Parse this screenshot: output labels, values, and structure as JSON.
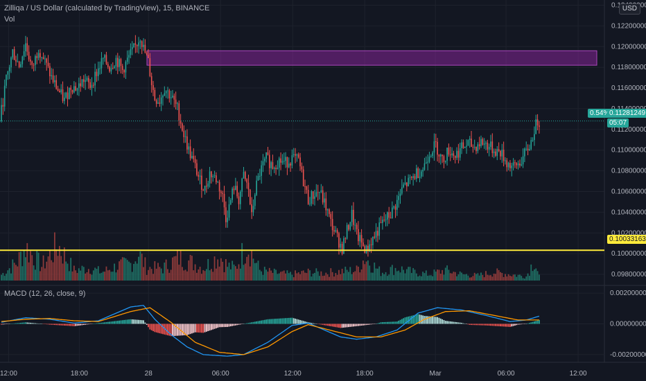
{
  "header": {
    "title": "Zilliqa / US Dollar (calculated by TradingView), 15, BINANCE",
    "vol_label": "Vol",
    "currency": "USD",
    "macd_label": "MACD (12, 26, close, 9)"
  },
  "price_axis": {
    "ticks": [
      "0.12400000",
      "0.12200000",
      "0.12000000",
      "0.11800000",
      "0.11600000",
      "0.11400000",
      "0.11200000",
      "0.11000000",
      "0.10800000",
      "0.10600000",
      "0.10400000",
      "0.10200000",
      "0.10000000",
      "0.09800000"
    ]
  },
  "macd_axis": {
    "ticks": [
      "0.00200000",
      "0.00000000",
      "-0.00200000"
    ]
  },
  "time_axis": {
    "labels": [
      "12:00",
      "18:00",
      "28",
      "06:00",
      "12:00",
      "18:00",
      "Mar",
      "06:00",
      "12:00"
    ]
  },
  "tags": {
    "current_change": "0.54%",
    "current_price": "0.11281249",
    "countdown": "05:07",
    "line_price": "0.10033163"
  },
  "colors": {
    "up": "#26a69a",
    "down": "#ef5350",
    "background": "#131722",
    "horizontal_line": "#ffeb3b",
    "zone_fill": "#9c27b0",
    "macd_line": "#2196f3",
    "signal_line": "#ff9800"
  },
  "chart_data": {
    "type": "candlestick",
    "interval": "15",
    "price_range": [
      0.097,
      0.1245
    ],
    "horizontal_line": 0.10033163,
    "zone": {
      "low": 0.1182,
      "high": 0.1196
    },
    "price_path": [
      [
        0,
        0.1128
      ],
      [
        4,
        0.1168
      ],
      [
        8,
        0.1195
      ],
      [
        12,
        0.1182
      ],
      [
        16,
        0.1203
      ],
      [
        20,
        0.1178
      ],
      [
        24,
        0.1199
      ],
      [
        28,
        0.1185
      ],
      [
        32,
        0.117
      ],
      [
        36,
        0.1158
      ],
      [
        40,
        0.1148
      ],
      [
        44,
        0.1162
      ],
      [
        48,
        0.116
      ],
      [
        52,
        0.1168
      ],
      [
        56,
        0.1162
      ],
      [
        60,
        0.1175
      ],
      [
        64,
        0.1188
      ],
      [
        68,
        0.118
      ],
      [
        72,
        0.1188
      ],
      [
        76,
        0.1177
      ],
      [
        80,
        0.119
      ],
      [
        84,
        0.12
      ],
      [
        87,
        0.121
      ],
      [
        89,
        0.1198
      ],
      [
        92,
        0.1185
      ],
      [
        94,
        0.1165
      ],
      [
        96,
        0.115
      ],
      [
        99,
        0.1148
      ],
      [
        102,
        0.116
      ],
      [
        106,
        0.1152
      ],
      [
        110,
        0.114
      ],
      [
        114,
        0.1115
      ],
      [
        117,
        0.11
      ],
      [
        120,
        0.1088
      ],
      [
        124,
        0.107
      ],
      [
        127,
        0.1062
      ],
      [
        130,
        0.1078
      ],
      [
        134,
        0.1072
      ],
      [
        138,
        0.1055
      ],
      [
        140,
        0.1035
      ],
      [
        142,
        0.1045
      ],
      [
        145,
        0.1065
      ],
      [
        148,
        0.1052
      ],
      [
        151,
        0.1075
      ],
      [
        154,
        0.1062
      ],
      [
        156,
        0.1035
      ],
      [
        158,
        0.106
      ],
      [
        161,
        0.1078
      ],
      [
        165,
        0.1092
      ],
      [
        169,
        0.1085
      ],
      [
        173,
        0.109
      ],
      [
        177,
        0.1088
      ],
      [
        181,
        0.1092
      ],
      [
        185,
        0.109
      ],
      [
        188,
        0.107
      ],
      [
        191,
        0.1052
      ],
      [
        195,
        0.1058
      ],
      [
        198,
        0.106
      ],
      [
        202,
        0.1045
      ],
      [
        205,
        0.103
      ],
      [
        209,
        0.1015
      ],
      [
        212,
        0.1005
      ],
      [
        215,
        0.1022
      ],
      [
        218,
        0.1038
      ],
      [
        221,
        0.1018
      ],
      [
        224,
        0.101
      ],
      [
        227,
        0.1003
      ],
      [
        230,
        0.1012
      ],
      [
        234,
        0.1022
      ],
      [
        238,
        0.1032
      ],
      [
        242,
        0.1038
      ],
      [
        246,
        0.105
      ],
      [
        250,
        0.1065
      ],
      [
        254,
        0.107
      ],
      [
        258,
        0.1078
      ],
      [
        262,
        0.1082
      ],
      [
        266,
        0.1098
      ],
      [
        270,
        0.1105
      ],
      [
        274,
        0.109
      ],
      [
        278,
        0.11
      ],
      [
        282,
        0.1095
      ],
      [
        286,
        0.1102
      ],
      [
        290,
        0.1106
      ],
      [
        294,
        0.1103
      ],
      [
        298,
        0.1108
      ],
      [
        302,
        0.1105
      ],
      [
        306,
        0.11
      ],
      [
        310,
        0.1098
      ],
      [
        314,
        0.1088
      ],
      [
        318,
        0.1083
      ],
      [
        322,
        0.1088
      ],
      [
        326,
        0.1098
      ],
      [
        329,
        0.1108
      ],
      [
        331,
        0.112
      ],
      [
        333,
        0.1128
      ]
    ],
    "volume_path": [
      [
        0,
        0.14
      ],
      [
        10,
        0.45
      ],
      [
        15,
        0.8
      ],
      [
        25,
        0.35
      ],
      [
        35,
        0.85
      ],
      [
        45,
        0.25
      ],
      [
        55,
        0.3
      ],
      [
        62,
        0.2
      ],
      [
        72,
        0.35
      ],
      [
        80,
        0.4
      ],
      [
        85,
        0.65
      ],
      [
        90,
        0.3
      ],
      [
        100,
        0.3
      ],
      [
        110,
        0.55
      ],
      [
        117,
        0.45
      ],
      [
        125,
        0.3
      ],
      [
        135,
        0.6
      ],
      [
        140,
        0.35
      ],
      [
        145,
        0.3
      ],
      [
        152,
        0.88
      ],
      [
        160,
        0.25
      ],
      [
        170,
        0.18
      ],
      [
        180,
        0.15
      ],
      [
        190,
        0.2
      ],
      [
        200,
        0.18
      ],
      [
        210,
        0.22
      ],
      [
        220,
        0.25
      ],
      [
        225,
        0.55
      ],
      [
        235,
        0.2
      ],
      [
        245,
        0.3
      ],
      [
        255,
        0.2
      ],
      [
        265,
        0.15
      ],
      [
        275,
        0.25
      ],
      [
        285,
        0.15
      ],
      [
        295,
        0.12
      ],
      [
        305,
        0.2
      ],
      [
        315,
        0.15
      ],
      [
        325,
        0.1
      ],
      [
        330,
        0.5
      ],
      [
        333,
        0.12
      ]
    ],
    "macd_range": [
      -0.0025,
      0.0025
    ],
    "macd_path": [
      [
        0,
        0.0001
      ],
      [
        15,
        0.0004
      ],
      [
        30,
        0.0003
      ],
      [
        45,
        5e-05
      ],
      [
        60,
        0.0002
      ],
      [
        80,
        0.0011
      ],
      [
        88,
        0.0012
      ],
      [
        95,
        0.0003
      ],
      [
        105,
        -0.0007
      ],
      [
        115,
        -0.0015
      ],
      [
        125,
        -0.002
      ],
      [
        140,
        -0.0021
      ],
      [
        150,
        -0.002
      ],
      [
        165,
        -0.0012
      ],
      [
        180,
        -0.0001
      ],
      [
        190,
        5e-05
      ],
      [
        200,
        -0.0004
      ],
      [
        210,
        -0.00085
      ],
      [
        220,
        -0.001
      ],
      [
        232,
        -0.00085
      ],
      [
        245,
        -0.0004
      ],
      [
        258,
        0.0007
      ],
      [
        270,
        0.00105
      ],
      [
        285,
        0.0009
      ],
      [
        300,
        0.00055
      ],
      [
        315,
        0.00015
      ],
      [
        325,
        0.00025
      ],
      [
        333,
        0.0005
      ]
    ],
    "signal_path": [
      [
        0,
        0.00015
      ],
      [
        15,
        0.0003
      ],
      [
        30,
        0.00035
      ],
      [
        45,
        0.0002
      ],
      [
        60,
        0.00015
      ],
      [
        80,
        0.0008
      ],
      [
        92,
        0.00105
      ],
      [
        105,
        0.0001
      ],
      [
        120,
        -0.0012
      ],
      [
        135,
        -0.00185
      ],
      [
        150,
        -0.002
      ],
      [
        165,
        -0.0015
      ],
      [
        180,
        -0.0005
      ],
      [
        190,
        -5e-05
      ],
      [
        205,
        -0.00045
      ],
      [
        220,
        -0.00085
      ],
      [
        235,
        -0.00085
      ],
      [
        250,
        -0.0004
      ],
      [
        262,
        0.0003
      ],
      [
        275,
        0.0008
      ],
      [
        290,
        0.00085
      ],
      [
        305,
        0.00055
      ],
      [
        320,
        0.00025
      ],
      [
        333,
        0.00025
      ]
    ]
  }
}
